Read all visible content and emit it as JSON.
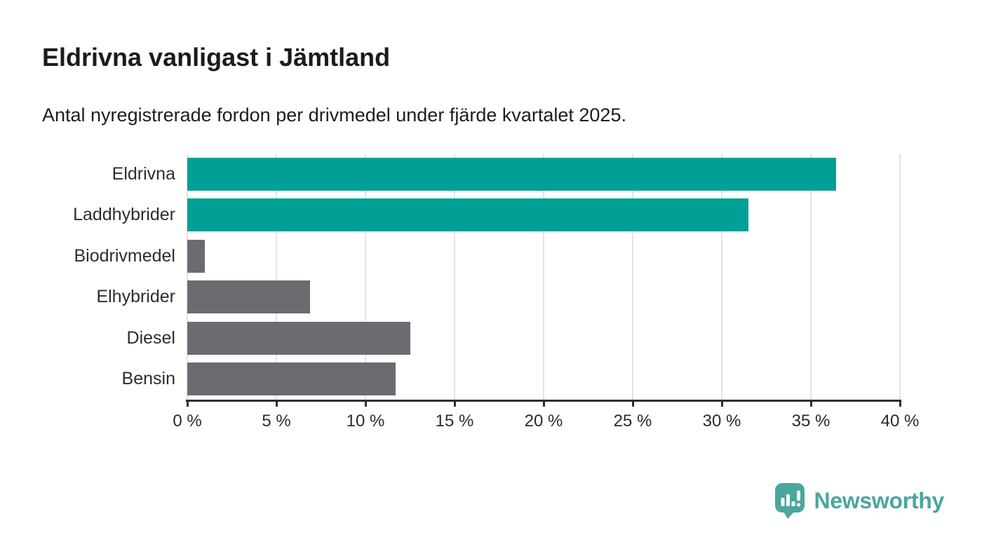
{
  "header": {
    "title": "Eldrivna vanligast i Jämtland",
    "subtitle": "Antal nyregistrerade fordon per drivmedel under fjärde kvartalet 2025."
  },
  "chart_data": {
    "type": "bar",
    "orientation": "horizontal",
    "title": "Eldrivna vanligast i Jämtland",
    "subtitle": "Antal nyregistrerade fordon per drivmedel under fjärde kvartalet 2025.",
    "categories": [
      "Eldrivna",
      "Laddhybrider",
      "Biodrivmedel",
      "Elhybrider",
      "Diesel",
      "Bensin"
    ],
    "values": [
      36.4,
      31.5,
      1.0,
      6.9,
      12.5,
      11.7
    ],
    "unit": "%",
    "bar_colors": [
      "#00a096",
      "#00a096",
      "#6b6b72",
      "#6b6b72",
      "#6b6b72",
      "#6b6b72"
    ],
    "highlight_color": "#00a096",
    "default_color": "#6b6b72",
    "xlim": [
      0,
      40
    ],
    "x_ticks": [
      0,
      5,
      10,
      15,
      20,
      25,
      30,
      35,
      40
    ],
    "x_tick_labels": [
      "0 %",
      "5 %",
      "10 %",
      "15 %",
      "20 %",
      "25 %",
      "30 %",
      "35 %",
      "40 %"
    ],
    "xlabel": "",
    "ylabel": "",
    "grid": "vertical",
    "legend": "none"
  },
  "footer": {
    "brand": "Newsworthy",
    "brand_color": "#4ba69f"
  }
}
